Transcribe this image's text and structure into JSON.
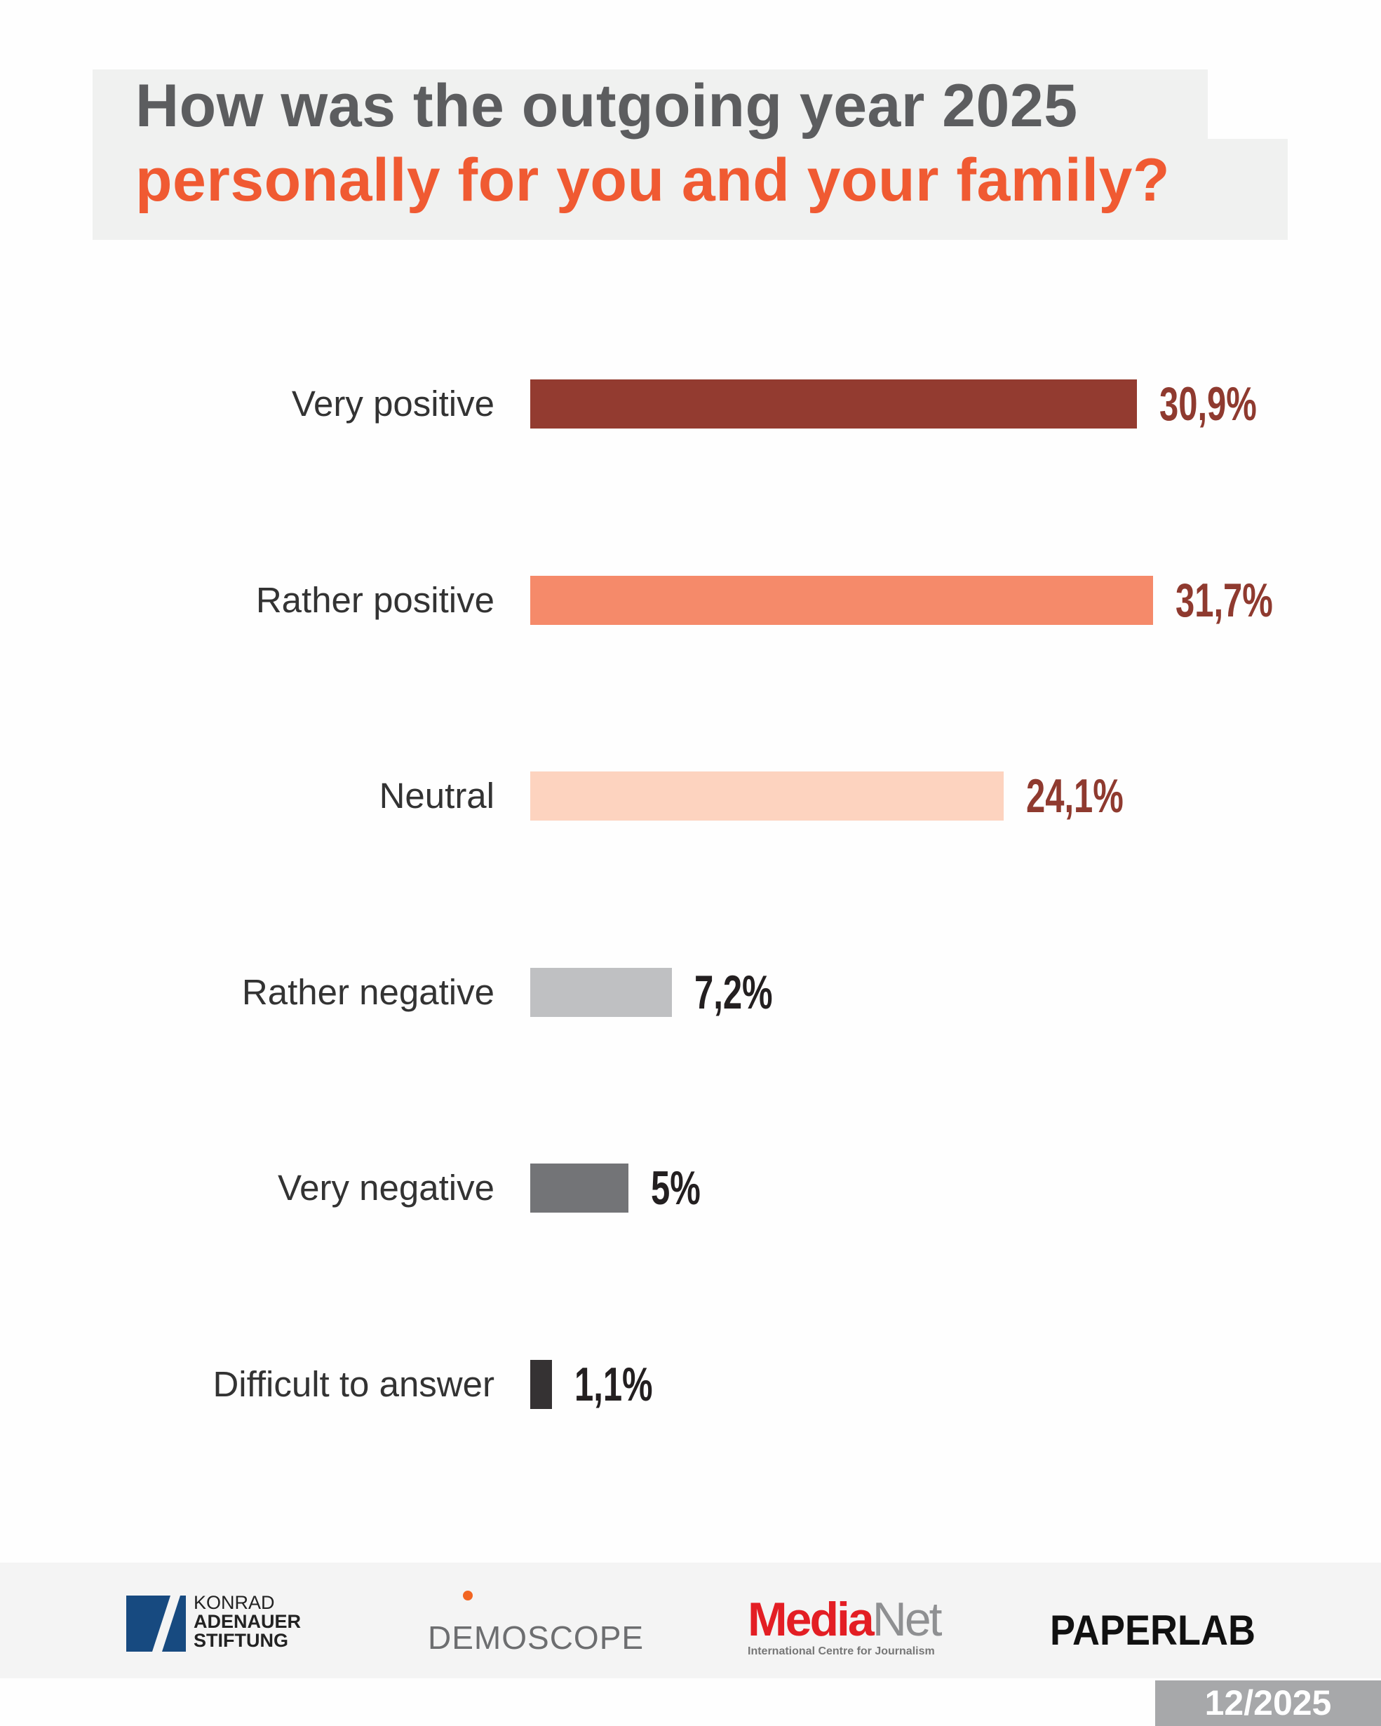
{
  "title": {
    "line1": "How was the outgoing year 2025",
    "line2": "personally for you and your family?"
  },
  "chart_data": {
    "type": "bar",
    "orientation": "horizontal",
    "title": "How was the outgoing year 2025 personally for you and your family?",
    "categories": [
      "Very positive",
      "Rather positive",
      "Neutral",
      "Rather negative",
      "Very negative",
      "Difficult to answer"
    ],
    "values": [
      30.9,
      31.7,
      24.1,
      7.2,
      5,
      1.1
    ],
    "value_labels": [
      "30,9%",
      "31,7%",
      "24,1%",
      "7,2%",
      "5%",
      "1,1%"
    ],
    "bar_colors": [
      "#933b30",
      "#f58a6a",
      "#fdd3bf",
      "#bfc0c2",
      "#737477",
      "#353233"
    ],
    "label_colors": [
      "#8f3a2f",
      "#8f3a2f",
      "#8f3a2f",
      "#231f20",
      "#231f20",
      "#231f20"
    ],
    "xlabel": "",
    "ylabel": "",
    "xlim": [
      0,
      35
    ],
    "grid": false
  },
  "footer": {
    "kas": [
      "KONRAD",
      "ADENAUER",
      "STIFTUNG"
    ],
    "demoscope": "EMOSCOPE",
    "medianet_a": "Media",
    "medianet_b": "Net",
    "medianet_sub": "International Centre for Journalism",
    "paperlab": "PAPERLAB",
    "date": "12/2025"
  }
}
